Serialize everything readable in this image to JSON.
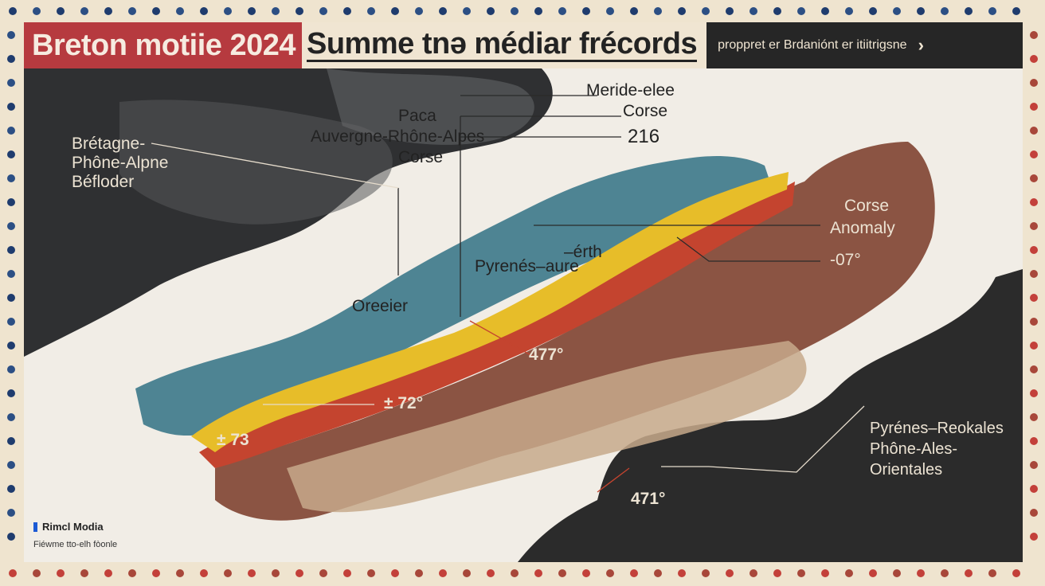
{
  "header": {
    "title_part1": "Breton motiie 2024",
    "title_part2": "Summe tnə médiar frécords",
    "link_text": "proppret er Brdaniónt er itiitrigsne",
    "chevron": "›"
  },
  "labels": {
    "meride": "Meride-elee",
    "corse_top": "Corse",
    "number_216": "216",
    "paca": "Paca",
    "auvergne": "Auvergne-Rhône-Alpes",
    "corse_mid": "Corse",
    "bretagne_lines": [
      "Brétagne-",
      "Phône-Alpne",
      "Béfloder"
    ],
    "corse_right": "Corse",
    "anomaly": "Anomaly",
    "minus07": "-07°",
    "erth": "–érth",
    "pyrenees_aure": "Pyrenés–aure",
    "oreeier": "Oreeier",
    "v_477": "477°",
    "v_472": "± 72°",
    "v_473": "± 73",
    "v_471": "471°",
    "south_lines": [
      "Pyrénes–Reokales",
      "Phône-Ales-",
      "Orientales"
    ]
  },
  "footer": {
    "logo_text": "Rimcl Modia",
    "credit_text": "Fiéwme tto-elh fòonle"
  },
  "colors": {
    "cool": "#4e8493",
    "hot_yellow": "#e7bd29",
    "hot_red": "#c4442f",
    "warm_brown": "#8b5443",
    "tan": "#c7a98b",
    "dark": "#2c2c2c",
    "title_red": "#b63a3f",
    "logo_blue": "#1c5ad4"
  }
}
